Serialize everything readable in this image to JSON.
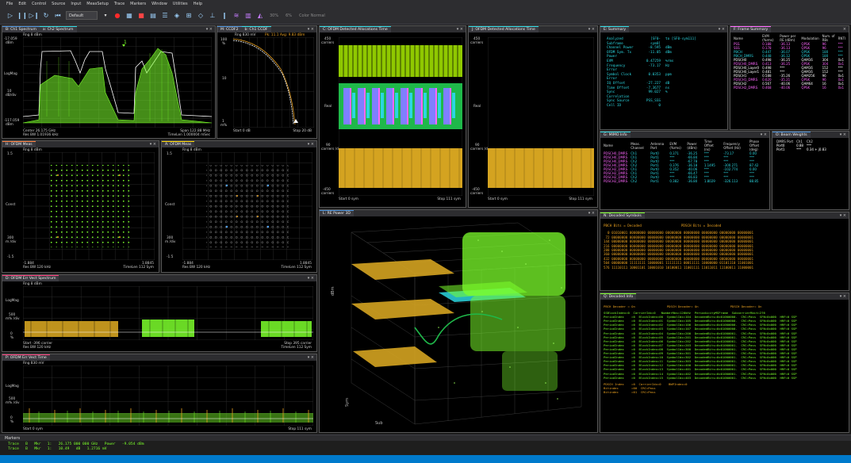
{
  "menu": [
    "File",
    "Edit",
    "Control",
    "Source",
    "Input",
    "MeasSetup",
    "Trace",
    "Markers",
    "Window",
    "Utilities",
    "Help"
  ],
  "toolbar": {
    "preset": "Default",
    "zoom1": "30%",
    "zoom2": "6%",
    "color_normal": "Color Normal"
  },
  "spectrum": {
    "tab1": "B: Ch1 Spectrum",
    "tab2": "a: Ch2 Spectrum",
    "ref": "Rng 8 dBm",
    "y_top": "-17.059",
    "y_top_unit": "dBm",
    "y_mid": "LogMag",
    "y_scale": "10",
    "y_scale_unit": "dB/div",
    "y_bot": "-117.059",
    "y_bot_unit": "dBm",
    "center": "Center 26.175 GHz",
    "res_bw": "Res BW 1.01936 kHz",
    "span": "Span 122.88 MHz",
    "timelen": "TimeLen 1.000004 mSec",
    "marker": "1"
  },
  "ccdf": {
    "tab1": "M: CCDF2",
    "tab2": "b: Ch1 CCDF",
    "ref": "Rng 830 mV",
    "pk": "Pk: 11.1 Avg: 9.83 dBm",
    "y_top": "100",
    "y_top_unit": "%",
    "y_mid": "10",
    "y_bot": "1",
    "y_bot2": "m%",
    "start": "Start 0 dB",
    "stop": "Stop 20 dB"
  },
  "alloc1": {
    "tab": "C: OFDM Detected Allocations Time",
    "y_top": "450",
    "y_top_unit": "carriers",
    "y_mid": "Real",
    "y_mid2": "90",
    "y_mid2_unit": "carriers /div",
    "y_bot": "-450",
    "y_bot_unit": "carriers",
    "start": "Start 0 sym",
    "stop": "Stop 111 sym"
  },
  "alloc2": {
    "tab": "J: OFDM Detected Allocations Time",
    "y_top": "450",
    "y_top_unit": "carriers",
    "y_mid": "Real",
    "y_mid2": "90",
    "y_mid2_unit": "carriers /div",
    "y_bot": "-450",
    "y_bot_unit": "carriers",
    "start": "Start 0 sym",
    "stop": "Stop 111 sym"
  },
  "summary": {
    "tab": "E: Summary",
    "rows": [
      {
        "k": "Analyzed Subframe",
        "v": "[SF0-sym0]",
        "u": "to [SF0-sym111]"
      },
      {
        "k": "Channel Power",
        "v": "-8.595",
        "u": "dBm"
      },
      {
        "k": "OFDM Sym. Tx Power",
        "v": "-11.05",
        "u": "dBm"
      },
      {
        "k": "EVM",
        "v": "0.47259",
        "u": "%rms"
      },
      {
        "k": "Frequency Error",
        "v": "-73.17",
        "u": "Hz"
      },
      {
        "k": "Symbol Clock Error",
        "v": "0.0353",
        "u": "ppm"
      },
      {
        "k": "IQ Offset",
        "v": "-27.227",
        "u": "dB"
      },
      {
        "k": "Time Offset",
        "v": "-7.3677",
        "u": "ns"
      },
      {
        "k": "Sync Correlation",
        "v": "99.027",
        "u": "%"
      },
      {
        "k": "Sync Source",
        "v": "PSS_SSS",
        "u": ""
      },
      {
        "k": "Cell ID",
        "v": "0",
        "u": ""
      }
    ]
  },
  "frame": {
    "tab": "F: Frame Summary",
    "headers": [
      "Name",
      "EVM (%rms)",
      "Power per RE (dBm)",
      "Modulation",
      "Num. of RBs",
      "RNTI"
    ],
    "rows": [
      {
        "name": "PSS",
        "evm": "0.188",
        "pwr": "-36.13",
        "mod": "QPSK",
        "rbs": "96",
        "rnti": "***",
        "color": "#ff66ff"
      },
      {
        "name": "SSS",
        "evm": "0.178",
        "pwr": "-36.13",
        "mod": "QPSK",
        "rbs": "96",
        "rnti": "***",
        "color": "#ff66ff"
      },
      {
        "name": "PBCH",
        "evm": "0.447",
        "pwr": "-36.07",
        "mod": "QPSK",
        "rbs": "180",
        "rnti": "***",
        "color": "#2bd6e0"
      },
      {
        "name": "PBCH_DMRS",
        "evm": "0.448",
        "pwr": "-36.12",
        "mod": "QPSK",
        "rbs": "180",
        "rnti": "***",
        "color": "#2bd6e0"
      },
      {
        "name": "PDSCH0",
        "evm": "0.498",
        "pwr": "-36.25",
        "mod": "QAM16",
        "rbs": "304",
        "rnti": "0x1",
        "color": "#ffffff"
      },
      {
        "name": "PDSCH0_DMRS",
        "evm": "0.413",
        "pwr": "-36.25",
        "mod": "QPSK",
        "rbs": "304",
        "rnti": "0x1",
        "color": "#ff66ff"
      },
      {
        "name": "PDSCH0_Layer0",
        "evm": "0.498",
        "pwr": "***",
        "mod": "QAM16",
        "rbs": "152",
        "rnti": "***",
        "color": "#ffffff"
      },
      {
        "name": "PDSCH0_Layer1",
        "evm": "0.481",
        "pwr": "***",
        "mod": "QAM16",
        "rbs": "152",
        "rnti": "***",
        "color": "#ffffff"
      },
      {
        "name": "PDSCH1",
        "evm": "0.588",
        "pwr": "-35.26",
        "mod": "QAM256",
        "rbs": "96",
        "rnti": "0x1",
        "color": "#ffffff"
      },
      {
        "name": "PDSCH1_DMRS",
        "evm": "0.620",
        "pwr": "-35.21",
        "mod": "QPSK",
        "rbs": "96",
        "rnti": "0x1",
        "color": "#ff66ff"
      },
      {
        "name": "PDSCH2",
        "evm": "0.567",
        "pwr": "-40.06",
        "mod": "QAM64",
        "rbs": "16",
        "rnti": "0x1",
        "color": "#ffffff"
      },
      {
        "name": "PDSCH2_DMRS",
        "evm": "0.468",
        "pwr": "-40.06",
        "mod": "QPSK",
        "rbs": "16",
        "rnti": "0x1",
        "color": "#ff66ff"
      }
    ]
  },
  "mimo": {
    "tab": "G: MIMO Info",
    "headers": [
      "Name",
      "Meas. Channel",
      "Antenna Port",
      "EVM (%rms)",
      "Power (dBm)",
      "Time Offset (ns)",
      "Frequency Offset (Hz)",
      "Phase Offset (deg)"
    ],
    "rows": [
      [
        "PDSCH0_DMRS",
        "Ch1",
        "Port0",
        "0.371",
        "-36.25",
        "***",
        "-73.17",
        "0.00"
      ],
      [
        "PDSCH0_DMRS",
        "Ch1",
        "Port1",
        "***",
        "-66.84",
        "***",
        "***",
        "***"
      ],
      [
        "PDSCH0_DMRS",
        "Ch2",
        "Port0",
        "***",
        "-67.78",
        "***",
        "***",
        "***"
      ],
      [
        "PDSCH0_DMRS",
        "Ch2",
        "Port1",
        "0.376",
        "-36.18",
        "1.1495",
        "-300.271",
        "87.42"
      ],
      [
        "PDSCH2_DMRS",
        "Ch1",
        "Port0",
        "0.352",
        "-40.06",
        "***",
        "-102.774",
        "0.00"
      ],
      [
        "PDSCH2_DMRS",
        "Ch1",
        "Port1",
        "***",
        "-66.47",
        "***",
        "***",
        "***"
      ],
      [
        "PDSCH2_DMRS",
        "Ch2",
        "Port0",
        "***",
        "-66.83",
        "***",
        "***",
        "***"
      ],
      [
        "PDSCH2_DMRS",
        "Ch2",
        "Port1",
        "0.382",
        "-36.80",
        "1.8029",
        "-326.113",
        "88.85"
      ]
    ]
  },
  "beam": {
    "tab": "O: Beam Weights",
    "headers": [
      "DMRS Port",
      "Ch1",
      "Ch2"
    ],
    "rows": [
      [
        "Port0",
        "0.88",
        "***"
      ],
      [
        "Port1",
        "***",
        "0.34 + j0.83"
      ]
    ]
  },
  "const1": {
    "tab": "H: OFDM Meas",
    "ref": "Rng 8 dBm",
    "y_top": "1.5",
    "y_mid": "Const",
    "y_mid2": "300",
    "y_mid2_unit": "m /div",
    "y_bot": "-1.5",
    "x_left": "-1.884",
    "x_right": "1.8845",
    "res_bw": "Res BW 120 kHz",
    "timelen": "TimeLen 112 Sym"
  },
  "const2": {
    "tab": "A: OFDM Meas",
    "ref": "Rng 8 dBm",
    "y_top": "1.5",
    "y_mid": "Const",
    "y_mid2": "300",
    "y_mid2_unit": "m /div",
    "y_bot": "-1.5",
    "x_left": "-1.884",
    "x_right": "1.8845",
    "res_bw": "Res BW 120 kHz",
    "timelen": "TimeLen 112 Sym"
  },
  "errspec": {
    "tab": "D: OFDM Err Vect Spectrum",
    "ref": "Rng 8 dBm",
    "y_mid": "LogMag",
    "y_scale": "500",
    "y_scale_unit": "m% /div",
    "y_bot": "0",
    "y_bot_unit": "%",
    "start": "Start -396 carrier",
    "res_bw": "Res BW 120 kHz",
    "stop": "Stop 395 carrier",
    "timelen": "TimeLen 112 Sym"
  },
  "errtime": {
    "tab": "P: OFDM Err Vect Time",
    "ref": "Rng 830 mV",
    "y_mid": "LogMag",
    "y_scale": "500",
    "y_scale_unit": "m% /div",
    "y_bot": "0",
    "y_bot_unit": "%",
    "start": "Start 0 sym",
    "stop": "Stop 111 sym"
  },
  "power3d": {
    "tab": "L: RE Power 3D",
    "zlabel": "dBm",
    "ylabel": "Sym",
    "ylabel2": "Sub"
  },
  "decoded_sym": {
    "tab": "N: Decoded Symbols",
    "h1": "PBCH Bits = Decoded",
    "h2": "PDSCH Bits = Decoded",
    "rows": [
      "  0 01010001 00000000 00000000 00000000 00000000 00000000 00000000 00000001",
      " 72 00000000 00000000 00000000 00000000 00000000 00000000 00000000 00000001",
      "144 00000000 00000000 00000000 00000000 00000000 00000000 00000000 00000001",
      "216 00000000 00000000 00000000 00000000 00000000 00000000 00000000 00000001",
      "288 00000000 00000000 00000000 00000000 00000000 00000000 00000000 00000001",
      "360 00000000 00000000 00000000 00000000 00000000 00000000 00000000 00000001",
      "432 00000000 00000000 00000000 00000000 00000000 00000000 00000000 00000001",
      "504 00000000 11111111 10000001 11111111 00011111 10000000 01101110 11001001",
      "576 11110111 10001101 10001010 10100011 11001111 11011011 11100011 11000001"
    ]
  },
  "decoded_info": {
    "tab": "Q: Decoded Info",
    "h1": "PBCH Decoder = On",
    "h2": "PDSCH Decoder= On",
    "h3": "PDSCH Decoder= On",
    "head_row": "SSBlockIndex=0  CarrierIdx=0   NumberRbs=120kHz  PeriodicityMSFrame  SubcarrierRbit=276",
    "rows": [
      "PeriodIndex    =0  BlockIndex=00  SymbolIdx=104  DecodedBits=0x01000000.  CRC=Pass  SFN=0x000  HRF=0 SSP",
      "PeriodIndex    =0  BlockIndex=01  SymbolIdx=105  DecodedBits=0x01000000.  CRC=Pass  SFN=0x000  HRF=0 SSP",
      "PeriodIndex    =0  BlockIndex=02  SymbolIdx=106  DecodedBits=0x01000000.  CRC=Pass  SFN=0x000  HRF=0 SSP",
      "PeriodIndex    =0  BlockIndex=03  SymbolIdx=107  DecodedBits=0x01000000.  CRC=Pass  SFN=0x000  HRF=0 SSP",
      "PeriodIndex    =0  BlockIndex=04  SymbolIdx=200  DecodedBits=0x01000001.  CRC=Pass  SFN=0x000  HRF=0 SSP",
      "PeriodIndex    =0  BlockIndex=05  SymbolIdx=201  DecodedBits=0x01000001.  CRC=Pass  SFN=0x000  HRF=0 SSP",
      "PeriodIndex    =0  BlockIndex=06  SymbolIdx=202  DecodedBits=0x01000001.  CRC=Pass  SFN=0x000  HRF=0 SSP",
      "PeriodIndex    =0  BlockIndex=07  SymbolIdx=203  DecodedBits=0x01000001.  CRC=Pass  SFN=0x000  HRF=0 SSP",
      "PeriodIndex    =0  BlockIndex=08  SymbolIdx=300  DecodedBits=0x01000001.  CRC=Pass  SFN=0x000  HRF=0 SSP",
      "PeriodIndex    =0  BlockIndex=09  SymbolIdx=301  DecodedBits=0x01000001.  CRC=Pass  SFN=0x000  HRF=0 SSP",
      "PeriodIndex    =0  BlockIndex=10  SymbolIdx=302  DecodedBits=0x01000001.  CRC=Pass  SFN=0x000  HRF=0 SSP",
      "PeriodIndex    =0  BlockIndex=11  SymbolIdx=303  DecodedBits=0x01000001.  CRC=Pass  SFN=0x000  HRF=0 SSP",
      "PeriodIndex    =0  BlockIndex=12  SymbolIdx=400  DecodedBits=0x01000001.  CRC=Pass  SFN=0x000  HRF=0 SSP",
      "PeriodIndex    =0  BlockIndex=13  SymbolIdx=401  DecodedBits=0x01000001.  CRC=Pass  SFN=0x000  HRF=0 SSP",
      "PeriodIndex    =0  BlockIndex=14  SymbolIdx=402  DecodedBits=0x01000001.  CRC=Pass  SFN=0x000  HRF=0 SSP",
      "PeriodIndex    =0  BlockIndex=15  SymbolIdx=403  DecodedBits=0x01000001.  CRC=Pass  SFN=0x000  HRF=0 SSP"
    ],
    "foot1": "PDSCH Index    =0  CarrierIdx=0    BWPIndex=0",
    "foot2": "Bitindex       =00  CRC=Pass",
    "foot3": "Bitindex       =01  CRC=Pass"
  },
  "markers": {
    "title": "Markers",
    "rows": [
      [
        "Trace",
        "B",
        "Mkr",
        "1:",
        "26.175 000 000 GHz",
        "Power",
        "-9.054 dBm"
      ],
      [
        "Trace",
        "B",
        "Mkr",
        "1:",
        "10.49",
        "dB",
        "1.2716 mV"
      ]
    ]
  },
  "colors": {
    "accent": "#007acc",
    "green": "#7cff2b",
    "orange": "#e8a020",
    "cyan": "#2bd6e0",
    "magenta": "#ff66ff"
  }
}
